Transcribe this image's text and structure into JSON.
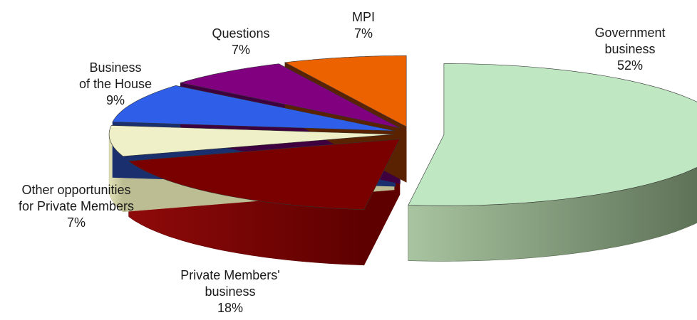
{
  "chart_data": {
    "type": "pie",
    "style": "3d-exploded",
    "legend": "none",
    "slices": [
      {
        "label_lines": [
          "Government",
          "business"
        ],
        "value": 52,
        "value_label": "52%",
        "color": "#bfe8c2",
        "side_light": "#a8c4a0",
        "side_dark": "#56694f"
      },
      {
        "label_lines": [
          "Private Members'",
          "business"
        ],
        "value": 18,
        "value_label": "18%",
        "color": "#7a0000",
        "side_light": "#8f0a0a",
        "side_dark": "#5e0000"
      },
      {
        "label_lines": [
          "Other opportunities",
          "for Private Members"
        ],
        "value": 7,
        "value_label": "7%",
        "color": "#efefc8",
        "side_light": "#e3e3b8",
        "side_dark": "#bdbd93"
      },
      {
        "label_lines": [
          "Business",
          "of the House"
        ],
        "value": 9,
        "value_label": "9%",
        "color": "#2f5fe8",
        "side_light": "#26469e",
        "side_dark": "#1a2f6e"
      },
      {
        "label_lines": [
          "Questions"
        ],
        "value": 7,
        "value_label": "7%",
        "color": "#800080",
        "side_light": "#5f005f",
        "side_dark": "#3f003f"
      },
      {
        "label_lines": [
          "MPI"
        ],
        "value": 7,
        "value_label": "7%",
        "color": "#ec6100",
        "side_light": "#7a3000",
        "side_dark": "#5a2200"
      }
    ]
  }
}
